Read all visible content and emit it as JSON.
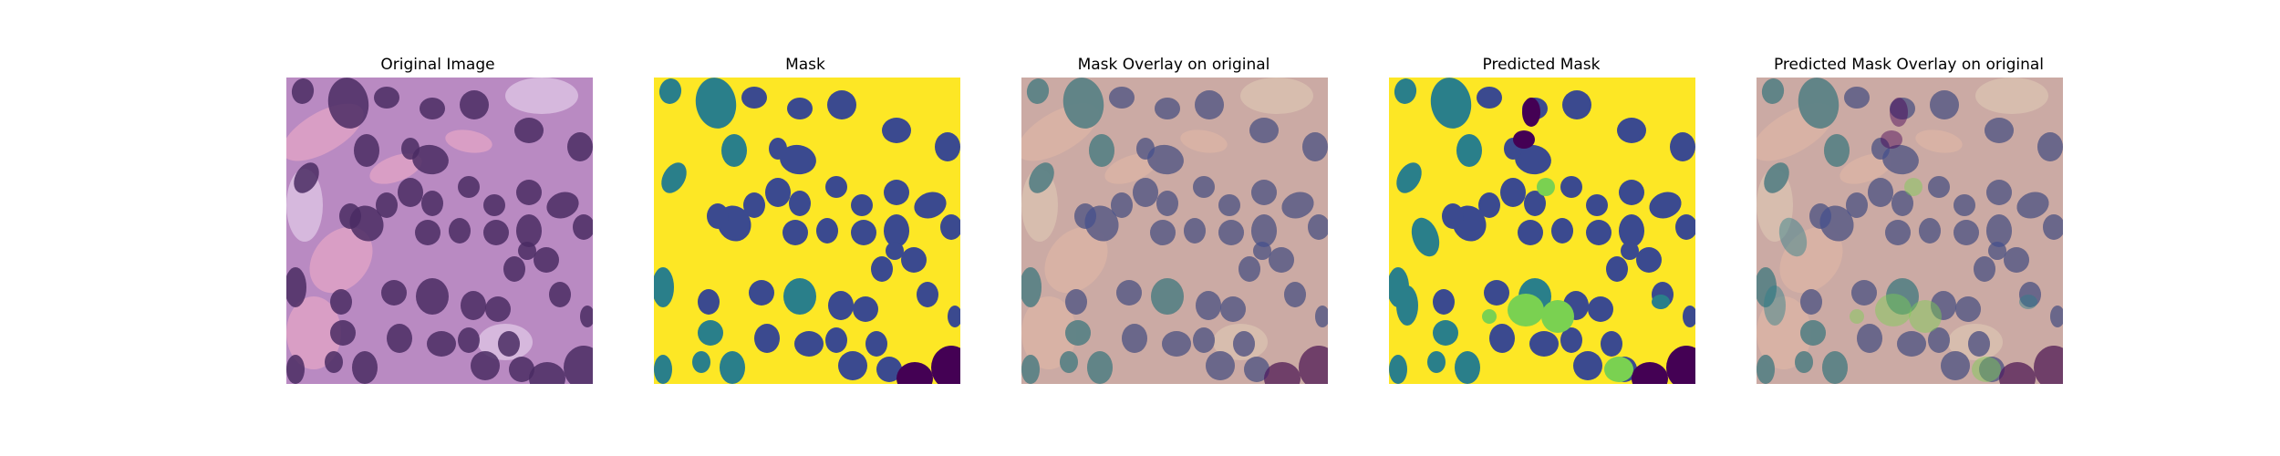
{
  "panels": [
    {
      "title": "Original Image",
      "kind": "original"
    },
    {
      "title": "Mask",
      "kind": "mask"
    },
    {
      "title": "Mask Overlay on original",
      "kind": "mask-overlay"
    },
    {
      "title": "Predicted Mask",
      "kind": "predicted"
    },
    {
      "title": "Predicted Mask Overlay on original",
      "kind": "predicted-overlay"
    }
  ],
  "colors": {
    "mask_background": "#fde725",
    "class_blue": "#3b4a8f",
    "class_teal": "#2a7f8a",
    "class_dark": "#440154",
    "class_green": "#7ad151",
    "tissue_purple": "#b98ac2",
    "tissue_pink": "#e7a6c6",
    "nucleus_dark": "#4a2c63",
    "overlay_tan": "#d7c08f"
  }
}
